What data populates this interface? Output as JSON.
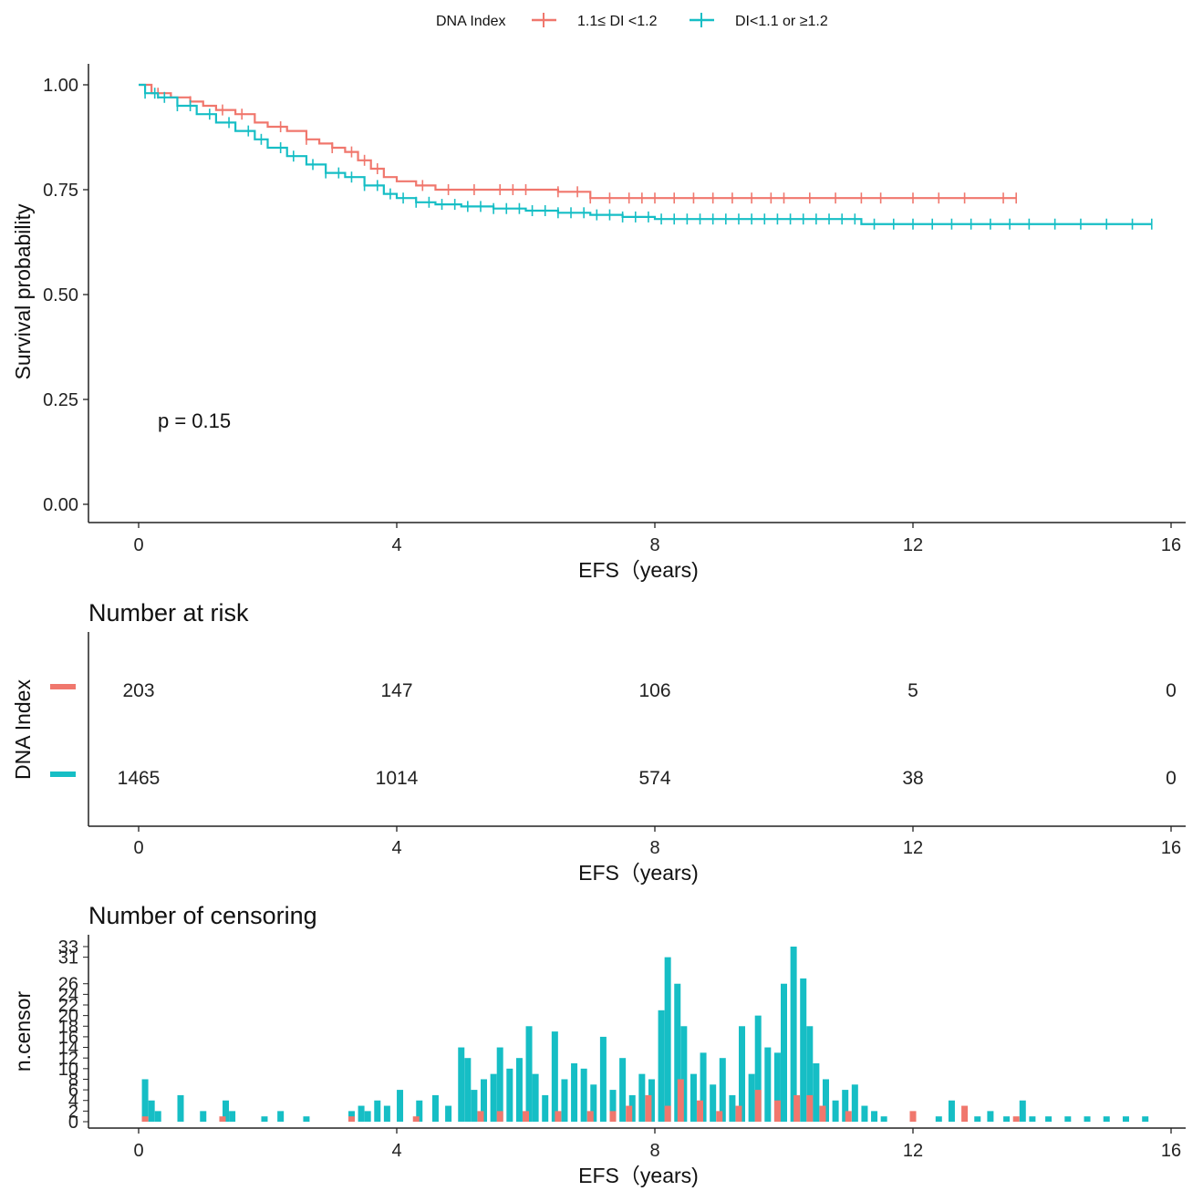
{
  "legend": {
    "title": "DNA Index",
    "entries": [
      {
        "label": "1.1≤ DI <1.2",
        "color": "#F0776D"
      },
      {
        "label": "DI<1.1 or ≥1.2",
        "color": "#16BEC5"
      }
    ]
  },
  "chart_data": [
    {
      "type": "line",
      "subtype": "kaplan-meier",
      "xlabel": "EFS（years)",
      "ylabel": "Survival probability",
      "xlim": [
        -0.8,
        16.4
      ],
      "ylim": [
        0,
        1.0
      ],
      "xticks": [
        0,
        4,
        8,
        12,
        16
      ],
      "yticks": [
        "0.00",
        "0.25",
        "0.50",
        "0.75",
        "1.00"
      ],
      "annotation": "p = 0.15",
      "series": [
        {
          "name": "1.1≤ DI <1.2",
          "color": "#F0776D",
          "x": [
            0,
            0.2,
            0.5,
            0.8,
            1.0,
            1.2,
            1.5,
            1.8,
            2.0,
            2.3,
            2.6,
            2.8,
            3.0,
            3.2,
            3.4,
            3.6,
            3.8,
            4.0,
            4.3,
            4.6,
            6.5,
            7.0,
            13.6
          ],
          "y": [
            1.0,
            0.98,
            0.97,
            0.96,
            0.95,
            0.94,
            0.93,
            0.91,
            0.9,
            0.89,
            0.87,
            0.86,
            0.85,
            0.84,
            0.82,
            0.8,
            0.78,
            0.77,
            0.76,
            0.75,
            0.745,
            0.73,
            0.73
          ],
          "censor_x": [
            0.3,
            0.8,
            1.3,
            1.6,
            2.2,
            2.6,
            3.0,
            3.3,
            3.5,
            3.7,
            4.4,
            4.8,
            5.2,
            5.6,
            5.8,
            6.0,
            6.5,
            6.8,
            7.0,
            7.3,
            7.6,
            7.8,
            8.0,
            8.3,
            8.6,
            8.9,
            9.2,
            9.5,
            9.8,
            10.0,
            10.4,
            10.8,
            11.2,
            11.5,
            12.0,
            12.4,
            12.8,
            13.4,
            13.6
          ]
        },
        {
          "name": "DI<1.1 or ≥1.2",
          "color": "#16BEC5",
          "x": [
            0,
            0.1,
            0.3,
            0.6,
            0.9,
            1.2,
            1.5,
            1.8,
            2.0,
            2.3,
            2.6,
            2.9,
            3.2,
            3.5,
            3.8,
            4.0,
            4.3,
            4.6,
            5.0,
            5.5,
            6.0,
            6.5,
            7.0,
            7.5,
            8.0,
            9.0,
            10.0,
            11.2,
            15.7
          ],
          "y": [
            1.0,
            0.98,
            0.97,
            0.95,
            0.93,
            0.91,
            0.89,
            0.87,
            0.85,
            0.83,
            0.81,
            0.79,
            0.78,
            0.76,
            0.74,
            0.73,
            0.72,
            0.715,
            0.71,
            0.705,
            0.7,
            0.695,
            0.69,
            0.685,
            0.68,
            0.68,
            0.68,
            0.668,
            0.668
          ],
          "censor_x": [
            0.1,
            0.25,
            0.4,
            0.6,
            0.8,
            1.1,
            1.4,
            1.7,
            1.9,
            2.2,
            2.4,
            2.7,
            2.9,
            3.1,
            3.3,
            3.5,
            3.7,
            3.9,
            4.1,
            4.3,
            4.5,
            4.7,
            4.9,
            5.1,
            5.3,
            5.5,
            5.7,
            5.9,
            6.1,
            6.3,
            6.5,
            6.7,
            6.9,
            7.1,
            7.3,
            7.5,
            7.7,
            7.9,
            8.1,
            8.3,
            8.5,
            8.7,
            8.9,
            9.1,
            9.3,
            9.5,
            9.7,
            9.9,
            10.1,
            10.3,
            10.5,
            10.7,
            10.9,
            11.1,
            11.4,
            11.7,
            12.0,
            12.3,
            12.6,
            12.9,
            13.2,
            13.5,
            13.8,
            14.2,
            14.6,
            15.0,
            15.4,
            15.7
          ]
        }
      ]
    },
    {
      "type": "table",
      "title": "Number at risk",
      "ylabel": "DNA Index",
      "xlabel": "EFS（years)",
      "xticks": [
        0,
        4,
        8,
        12,
        16
      ],
      "rows": [
        {
          "group": "1.1≤ DI <1.2",
          "color": "#F0776D",
          "values": [
            "203",
            "147",
            "106",
            "5",
            "0"
          ]
        },
        {
          "group": "DI<1.1 or ≥1.2",
          "color": "#16BEC5",
          "values": [
            "1465",
            "1014",
            "574",
            "38",
            "0"
          ]
        }
      ]
    },
    {
      "type": "bar",
      "title": "Number of censoring",
      "ylabel": "n.censor",
      "xlabel": "EFS（years)",
      "xticks": [
        0,
        4,
        8,
        12,
        16
      ],
      "yticks": [
        "0",
        "2",
        "4",
        "6",
        "8",
        "10",
        "12",
        "14",
        "16",
        "18",
        "20",
        "22",
        "24",
        "26",
        "31",
        "33"
      ],
      "ylim": [
        0,
        34
      ],
      "series": [
        {
          "name": "DI<1.1 or ≥1.2",
          "color": "#16BEC5",
          "x": [
            0.1,
            0.2,
            0.3,
            0.65,
            1.0,
            1.35,
            1.45,
            1.95,
            2.2,
            2.6,
            3.3,
            3.45,
            3.55,
            3.7,
            3.85,
            4.05,
            4.35,
            4.6,
            4.8,
            5.0,
            5.1,
            5.2,
            5.35,
            5.5,
            5.6,
            5.75,
            5.9,
            6.05,
            6.15,
            6.3,
            6.45,
            6.6,
            6.75,
            6.9,
            7.05,
            7.2,
            7.35,
            7.5,
            7.65,
            7.8,
            7.95,
            8.1,
            8.2,
            8.35,
            8.45,
            8.6,
            8.75,
            8.9,
            9.05,
            9.2,
            9.35,
            9.5,
            9.6,
            9.75,
            9.9,
            10.0,
            10.15,
            10.3,
            10.4,
            10.5,
            10.65,
            10.8,
            10.95,
            11.1,
            11.25,
            11.4,
            11.55,
            12.0,
            12.4,
            12.6,
            13.0,
            13.2,
            13.45,
            13.7,
            13.85,
            14.1,
            14.4,
            14.7,
            15.0,
            15.3,
            15.6
          ],
          "values": [
            8,
            4,
            2,
            5,
            2,
            4,
            2,
            1,
            2,
            1,
            2,
            3,
            2,
            4,
            3,
            6,
            4,
            5,
            3,
            14,
            12,
            6,
            8,
            9,
            14,
            10,
            12,
            18,
            9,
            5,
            17,
            8,
            11,
            10,
            7,
            16,
            6,
            12,
            5,
            9,
            8,
            21,
            31,
            26,
            18,
            9,
            13,
            7,
            12,
            5,
            18,
            9,
            20,
            14,
            13,
            26,
            33,
            27,
            18,
            11,
            8,
            4,
            6,
            7,
            3,
            2,
            1,
            1,
            1,
            4,
            1,
            2,
            1,
            4,
            1,
            1,
            1,
            1,
            1,
            1,
            1
          ]
        },
        {
          "name": "1.1≤ DI <1.2",
          "color": "#F0776D",
          "x": [
            0.1,
            1.3,
            3.3,
            4.3,
            5.3,
            5.6,
            6.0,
            6.5,
            7.0,
            7.35,
            7.6,
            7.9,
            8.2,
            8.4,
            8.7,
            9.0,
            9.3,
            9.6,
            9.9,
            10.2,
            10.4,
            10.6,
            11.0,
            12.0,
            12.8,
            13.6
          ],
          "values": [
            1,
            1,
            1,
            1,
            2,
            2,
            2,
            2,
            2,
            2,
            3,
            5,
            3,
            8,
            4,
            2,
            3,
            6,
            4,
            5,
            5,
            3,
            2,
            2,
            3,
            1
          ]
        }
      ]
    }
  ]
}
